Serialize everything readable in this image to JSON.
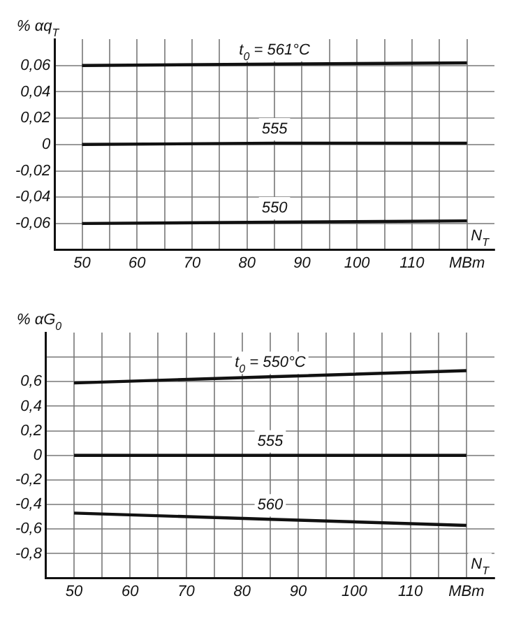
{
  "chart_data": [
    {
      "type": "line",
      "ylabel": "% αq$_{T}$",
      "xlabel": "N$_{T}$",
      "xlim": [
        45,
        125
      ],
      "xticks": [
        50,
        {
          "value": 55,
          "label": null
        },
        60,
        {
          "value": 65,
          "label": null
        },
        70,
        {
          "value": 75,
          "label": null
        },
        80,
        {
          "value": 85,
          "label": null
        },
        90,
        {
          "value": 95,
          "label": null
        },
        100,
        {
          "value": 105,
          "label": null
        },
        110,
        {
          "value": 115,
          "label": null
        },
        {
          "value": 120,
          "label": "МВт"
        }
      ],
      "ylim": [
        -0.08,
        0.08
      ],
      "yticks": [
        {
          "value": 0.06,
          "label": "0,06"
        },
        {
          "value": 0.04,
          "label": "0,04"
        },
        {
          "value": 0.02,
          "label": "0,02"
        },
        0,
        {
          "value": -0.02,
          "label": "-0,02"
        },
        {
          "value": -0.04,
          "label": "-0,04"
        },
        {
          "value": -0.06,
          "label": "-0,06"
        }
      ],
      "grid": true,
      "series": [
        {
          "name": "t$_{0}$ = 561°C",
          "color": "#111111",
          "x": [
            50,
            85,
            120
          ],
          "values": [
            0.06,
            0.061,
            0.062
          ]
        },
        {
          "name": "555",
          "color": "#111111",
          "x": [
            50,
            85,
            120
          ],
          "values": [
            0,
            0.001,
            0.001
          ]
        },
        {
          "name": "550",
          "color": "#111111",
          "x": [
            50,
            85,
            120
          ],
          "values": [
            -0.06,
            -0.059,
            -0.058
          ]
        }
      ]
    },
    {
      "type": "line",
      "ylabel": "% αG$_{0}$",
      "xlabel": "N$_{T}$",
      "xlim": [
        45,
        125
      ],
      "xticks": [
        50,
        {
          "value": 55,
          "label": null
        },
        60,
        {
          "value": 65,
          "label": null
        },
        70,
        {
          "value": 75,
          "label": null
        },
        80,
        {
          "value": 85,
          "label": null
        },
        90,
        {
          "value": 95,
          "label": null
        },
        100,
        {
          "value": 105,
          "label": null
        },
        110,
        {
          "value": 115,
          "label": null
        },
        {
          "value": 120,
          "label": "МВт"
        }
      ],
      "ylim": [
        -1,
        1
      ],
      "yticks": [
        {
          "value": 0.8,
          "label": null
        },
        {
          "value": 0.6,
          "label": "0,6"
        },
        {
          "value": 0.4,
          "label": "0,4"
        },
        {
          "value": 0.2,
          "label": "0,2"
        },
        0,
        {
          "value": -0.2,
          "label": "-0,2"
        },
        {
          "value": -0.4,
          "label": "-0,4"
        },
        {
          "value": -0.6,
          "label": "-0,6"
        },
        {
          "value": -0.8,
          "label": "-0,8"
        }
      ],
      "grid": true,
      "series": [
        {
          "name": "t$_{0}$ = 550°C",
          "color": "#111111",
          "x": [
            50,
            85,
            120
          ],
          "values": [
            0.59,
            0.64,
            0.69
          ]
        },
        {
          "name": "555",
          "color": "#111111",
          "x": [
            50,
            85,
            120
          ],
          "values": [
            0,
            0,
            0
          ]
        },
        {
          "name": "560",
          "color": "#111111",
          "x": [
            50,
            85,
            120
          ],
          "values": [
            -0.47,
            -0.52,
            -0.57
          ]
        }
      ]
    }
  ]
}
